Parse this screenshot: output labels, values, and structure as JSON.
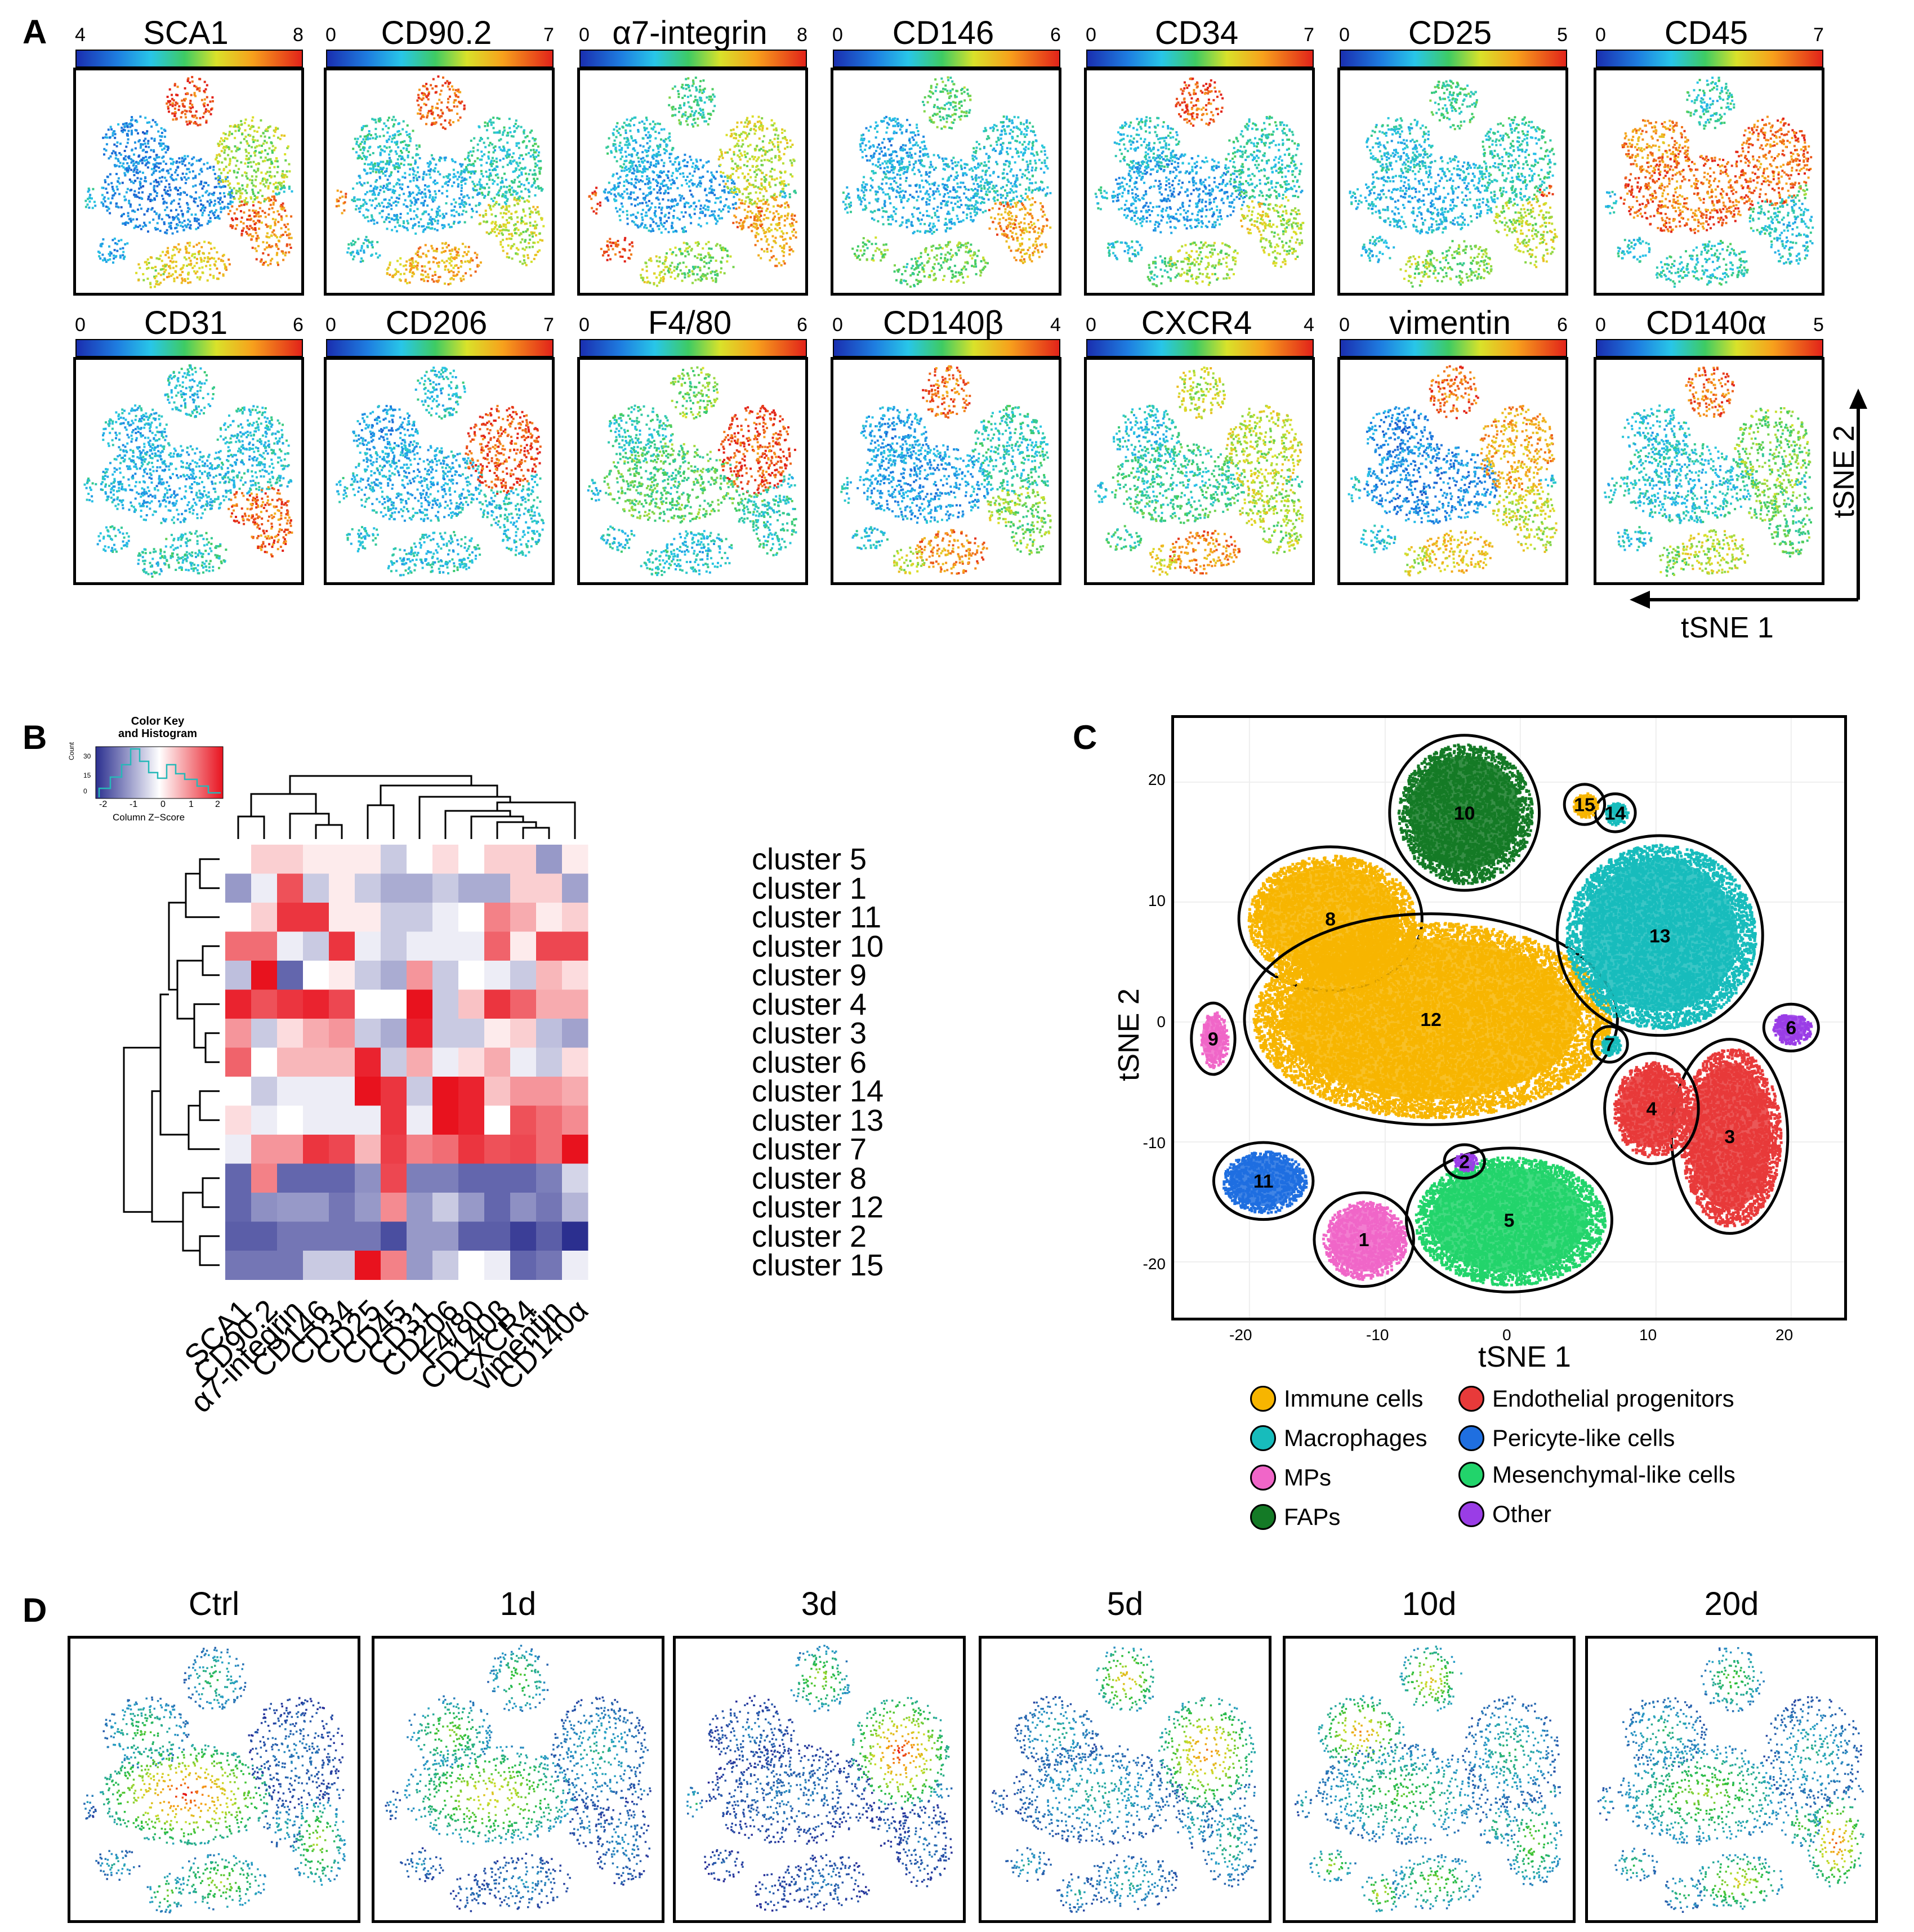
{
  "panels": {
    "a": "A",
    "b": "B",
    "c": "C",
    "d": "D"
  },
  "panel_a": {
    "markers": [
      {
        "name": "SCA1",
        "min": "4",
        "max": "8"
      },
      {
        "name": "CD90.2",
        "min": "0",
        "max": "7"
      },
      {
        "name": "α7-integrin",
        "min": "0",
        "max": "8"
      },
      {
        "name": "CD146",
        "min": "0",
        "max": "6"
      },
      {
        "name": "CD34",
        "min": "0",
        "max": "7"
      },
      {
        "name": "CD25",
        "min": "0",
        "max": "5"
      },
      {
        "name": "CD45",
        "min": "0",
        "max": "7"
      },
      {
        "name": "CD31",
        "min": "0",
        "max": "6"
      },
      {
        "name": "CD206",
        "min": "0",
        "max": "7"
      },
      {
        "name": "F4/80",
        "min": "0",
        "max": "6"
      },
      {
        "name": "CD140β",
        "min": "0",
        "max": "4"
      },
      {
        "name": "CXCR4",
        "min": "0",
        "max": "4"
      },
      {
        "name": "vimentin",
        "min": "0",
        "max": "6"
      },
      {
        "name": "CD140α",
        "min": "0",
        "max": "5"
      }
    ],
    "axis_x": "tSNE 1",
    "axis_y": "tSNE 2"
  },
  "panel_b": {
    "color_key_title": "Color Key",
    "color_key_subtitle": "and Histogram",
    "color_key_ylabel": "Count",
    "color_key_yticks": [
      "0",
      "15",
      "30"
    ],
    "color_key_xticks": [
      "-2",
      "-1",
      "0",
      "1",
      "2"
    ],
    "color_key_xlabel": "Column Z−Score",
    "rows": [
      "cluster 5",
      "cluster 1",
      "cluster 11",
      "cluster 10",
      "cluster 9",
      "cluster 4",
      "cluster 3",
      "cluster 6",
      "cluster 14",
      "cluster 13",
      "cluster 7",
      "cluster 8",
      "cluster 12",
      "cluster 2",
      "cluster 15"
    ],
    "columns": [
      "SCA1",
      "CD90.2",
      "α7-integrin",
      "CD146",
      "CD34",
      "CD25",
      "CD45",
      "CD31",
      "CD206",
      "F4/80",
      "CD140β",
      "CXCR4",
      "vimentin",
      "CD140α"
    ]
  },
  "chart_data": {
    "type": "heatmap",
    "title": "",
    "xlabel": "",
    "ylabel": "",
    "categories": [
      "SCA1",
      "CD90.2",
      "α7-integrin",
      "CD146",
      "CD34",
      "CD25",
      "CD45",
      "CD31",
      "CD206",
      "F4/80",
      "CD140β",
      "CXCR4",
      "vimentin",
      "CD140α"
    ],
    "rows": [
      "cluster 5",
      "cluster 1",
      "cluster 11",
      "cluster 10",
      "cluster 9",
      "cluster 4",
      "cluster 3",
      "cluster 6",
      "cluster 14",
      "cluster 13",
      "cluster 7",
      "cluster 8",
      "cluster 12",
      "cluster 2",
      "cluster 15"
    ],
    "z_range": [
      -2,
      2
    ],
    "values": [
      [
        0.0,
        0.3,
        0.3,
        0.1,
        0.1,
        0.1,
        -0.4,
        0.0,
        0.2,
        0.0,
        0.3,
        0.3,
        -0.9,
        0.1
      ],
      [
        -0.9,
        -0.1,
        1.5,
        -0.4,
        0.1,
        -0.4,
        -0.7,
        -0.7,
        -0.4,
        -0.7,
        -0.7,
        0.3,
        0.3,
        -0.8
      ],
      [
        0.0,
        0.3,
        1.8,
        1.8,
        0.1,
        0.1,
        -0.4,
        -0.4,
        -0.1,
        0.0,
        1.0,
        0.6,
        0.1,
        0.3
      ],
      [
        1.2,
        1.2,
        -0.1,
        -0.4,
        1.8,
        -0.1,
        -0.4,
        -0.1,
        -0.1,
        -0.1,
        1.3,
        0.1,
        1.6,
        1.6
      ],
      [
        -0.5,
        2.2,
        -1.5,
        0.0,
        0.1,
        -0.4,
        -0.7,
        0.8,
        -0.4,
        0.0,
        -0.1,
        -0.4,
        0.5,
        0.2
      ],
      [
        2.0,
        1.5,
        1.8,
        2.0,
        1.6,
        0.0,
        0.0,
        2.2,
        -0.4,
        0.4,
        1.8,
        1.3,
        0.6,
        0.6
      ],
      [
        0.8,
        -0.4,
        0.2,
        0.6,
        0.8,
        -0.4,
        -0.7,
        2.0,
        -0.4,
        -0.4,
        0.1,
        0.3,
        -0.5,
        -0.8
      ],
      [
        1.3,
        0.0,
        0.5,
        0.5,
        0.5,
        2.0,
        -0.4,
        0.6,
        -0.1,
        0.2,
        0.6,
        -0.1,
        -0.4,
        0.2
      ],
      [
        0.0,
        -0.4,
        -0.1,
        -0.1,
        -0.1,
        2.2,
        1.8,
        -0.4,
        2.2,
        2.0,
        0.4,
        0.8,
        0.8,
        0.6
      ],
      [
        0.2,
        -0.1,
        0.0,
        -0.1,
        -0.1,
        -0.1,
        1.8,
        -0.1,
        2.2,
        2.0,
        0.0,
        1.5,
        1.2,
        0.9
      ],
      [
        -0.1,
        0.8,
        0.8,
        1.8,
        1.6,
        0.5,
        1.7,
        1.0,
        1.2,
        1.8,
        1.5,
        1.6,
        1.2,
        2.2
      ],
      [
        -1.5,
        1.0,
        -1.5,
        -1.5,
        -1.5,
        -1.0,
        1.6,
        -1.2,
        -1.2,
        -1.5,
        -1.5,
        -1.5,
        -1.2,
        -0.3
      ],
      [
        -1.5,
        -1.0,
        -0.9,
        -0.9,
        -1.3,
        -0.9,
        0.9,
        -0.9,
        -0.4,
        -0.9,
        -1.5,
        -1.0,
        -1.3,
        -0.6
      ],
      [
        -1.6,
        -1.6,
        -1.3,
        -1.3,
        -1.3,
        -1.3,
        -1.8,
        -0.9,
        -0.9,
        -1.6,
        -1.6,
        -2.0,
        -1.6,
        -2.2
      ],
      [
        -1.3,
        -1.3,
        -1.3,
        -0.4,
        -0.4,
        2.2,
        1.0,
        -0.9,
        -0.4,
        0.0,
        -0.1,
        -1.5,
        -1.3,
        -0.1
      ]
    ]
  },
  "panel_c": {
    "xlabel": "tSNE 1",
    "ylabel": "tSNE 2",
    "xticks": [
      "-20",
      "-10",
      "0",
      "10",
      "20"
    ],
    "yticks": [
      "20",
      "10",
      "0",
      "-10",
      "-20"
    ],
    "cluster_labels": [
      "1",
      "2",
      "3",
      "4",
      "5",
      "6",
      "7",
      "8",
      "9",
      "10",
      "11",
      "12",
      "13",
      "14",
      "15"
    ],
    "legend": [
      {
        "label": "Immune cells",
        "color": "#f7b500"
      },
      {
        "label": "Macrophages",
        "color": "#17bcbc"
      },
      {
        "label": "MPs",
        "color": "#f066c8"
      },
      {
        "label": "FAPs",
        "color": "#147a26"
      },
      {
        "label": "Endothelial progenitors",
        "color": "#e83a3a"
      },
      {
        "label": "Pericyte-like cells",
        "color": "#1f6fe0"
      },
      {
        "label": "Mesenchymal-like cells",
        "color": "#22d46b"
      },
      {
        "label": "Other",
        "color": "#9a3de6"
      }
    ]
  },
  "panel_d": {
    "timepoints": [
      "Ctrl",
      "1d",
      "3d",
      "5d",
      "10d",
      "20d"
    ]
  },
  "colors": {
    "heat_low": "#2b2f8f",
    "heat_mid": "#ffffff",
    "heat_high": "#e8121e",
    "hist_line": "#26b8b8"
  }
}
